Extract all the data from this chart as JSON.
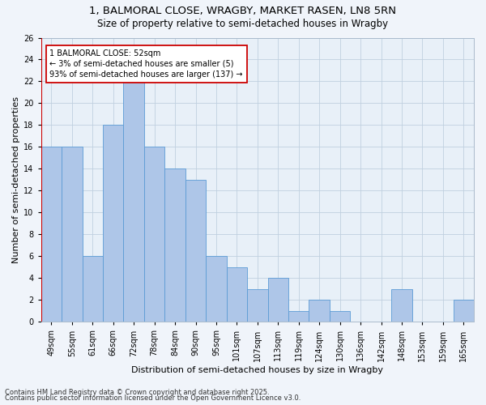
{
  "title_line1": "1, BALMORAL CLOSE, WRAGBY, MARKET RASEN, LN8 5RN",
  "title_line2": "Size of property relative to semi-detached houses in Wragby",
  "xlabel": "Distribution of semi-detached houses by size in Wragby",
  "ylabel": "Number of semi-detached properties",
  "categories": [
    "49sqm",
    "55sqm",
    "61sqm",
    "66sqm",
    "72sqm",
    "78sqm",
    "84sqm",
    "90sqm",
    "95sqm",
    "101sqm",
    "107sqm",
    "113sqm",
    "119sqm",
    "124sqm",
    "130sqm",
    "136sqm",
    "142sqm",
    "148sqm",
    "153sqm",
    "159sqm",
    "165sqm"
  ],
  "values": [
    16,
    16,
    6,
    18,
    22,
    16,
    14,
    13,
    6,
    5,
    3,
    4,
    1,
    2,
    1,
    0,
    0,
    3,
    0,
    0,
    2
  ],
  "bar_color": "#aec6e8",
  "bar_edge_color": "#5b9bd5",
  "annotation_title": "1 BALMORAL CLOSE: 52sqm",
  "annotation_line1": "← 3% of semi-detached houses are smaller (5)",
  "annotation_line2": "93% of semi-detached houses are larger (137) →",
  "annotation_box_color": "#ffffff",
  "annotation_box_edge": "#cc0000",
  "ylim": [
    0,
    26
  ],
  "yticks": [
    0,
    2,
    4,
    6,
    8,
    10,
    12,
    14,
    16,
    18,
    20,
    22,
    24,
    26
  ],
  "footnote1": "Contains HM Land Registry data © Crown copyright and database right 2025.",
  "footnote2": "Contains public sector information licensed under the Open Government Licence v3.0.",
  "bg_color": "#f0f4fa",
  "plot_bg_color": "#e8f0f8",
  "grid_color": "#c0d0e0",
  "title_fontsize": 9.5,
  "subtitle_fontsize": 8.5,
  "axis_label_fontsize": 8,
  "tick_fontsize": 7,
  "annotation_fontsize": 7,
  "footnote_fontsize": 6
}
